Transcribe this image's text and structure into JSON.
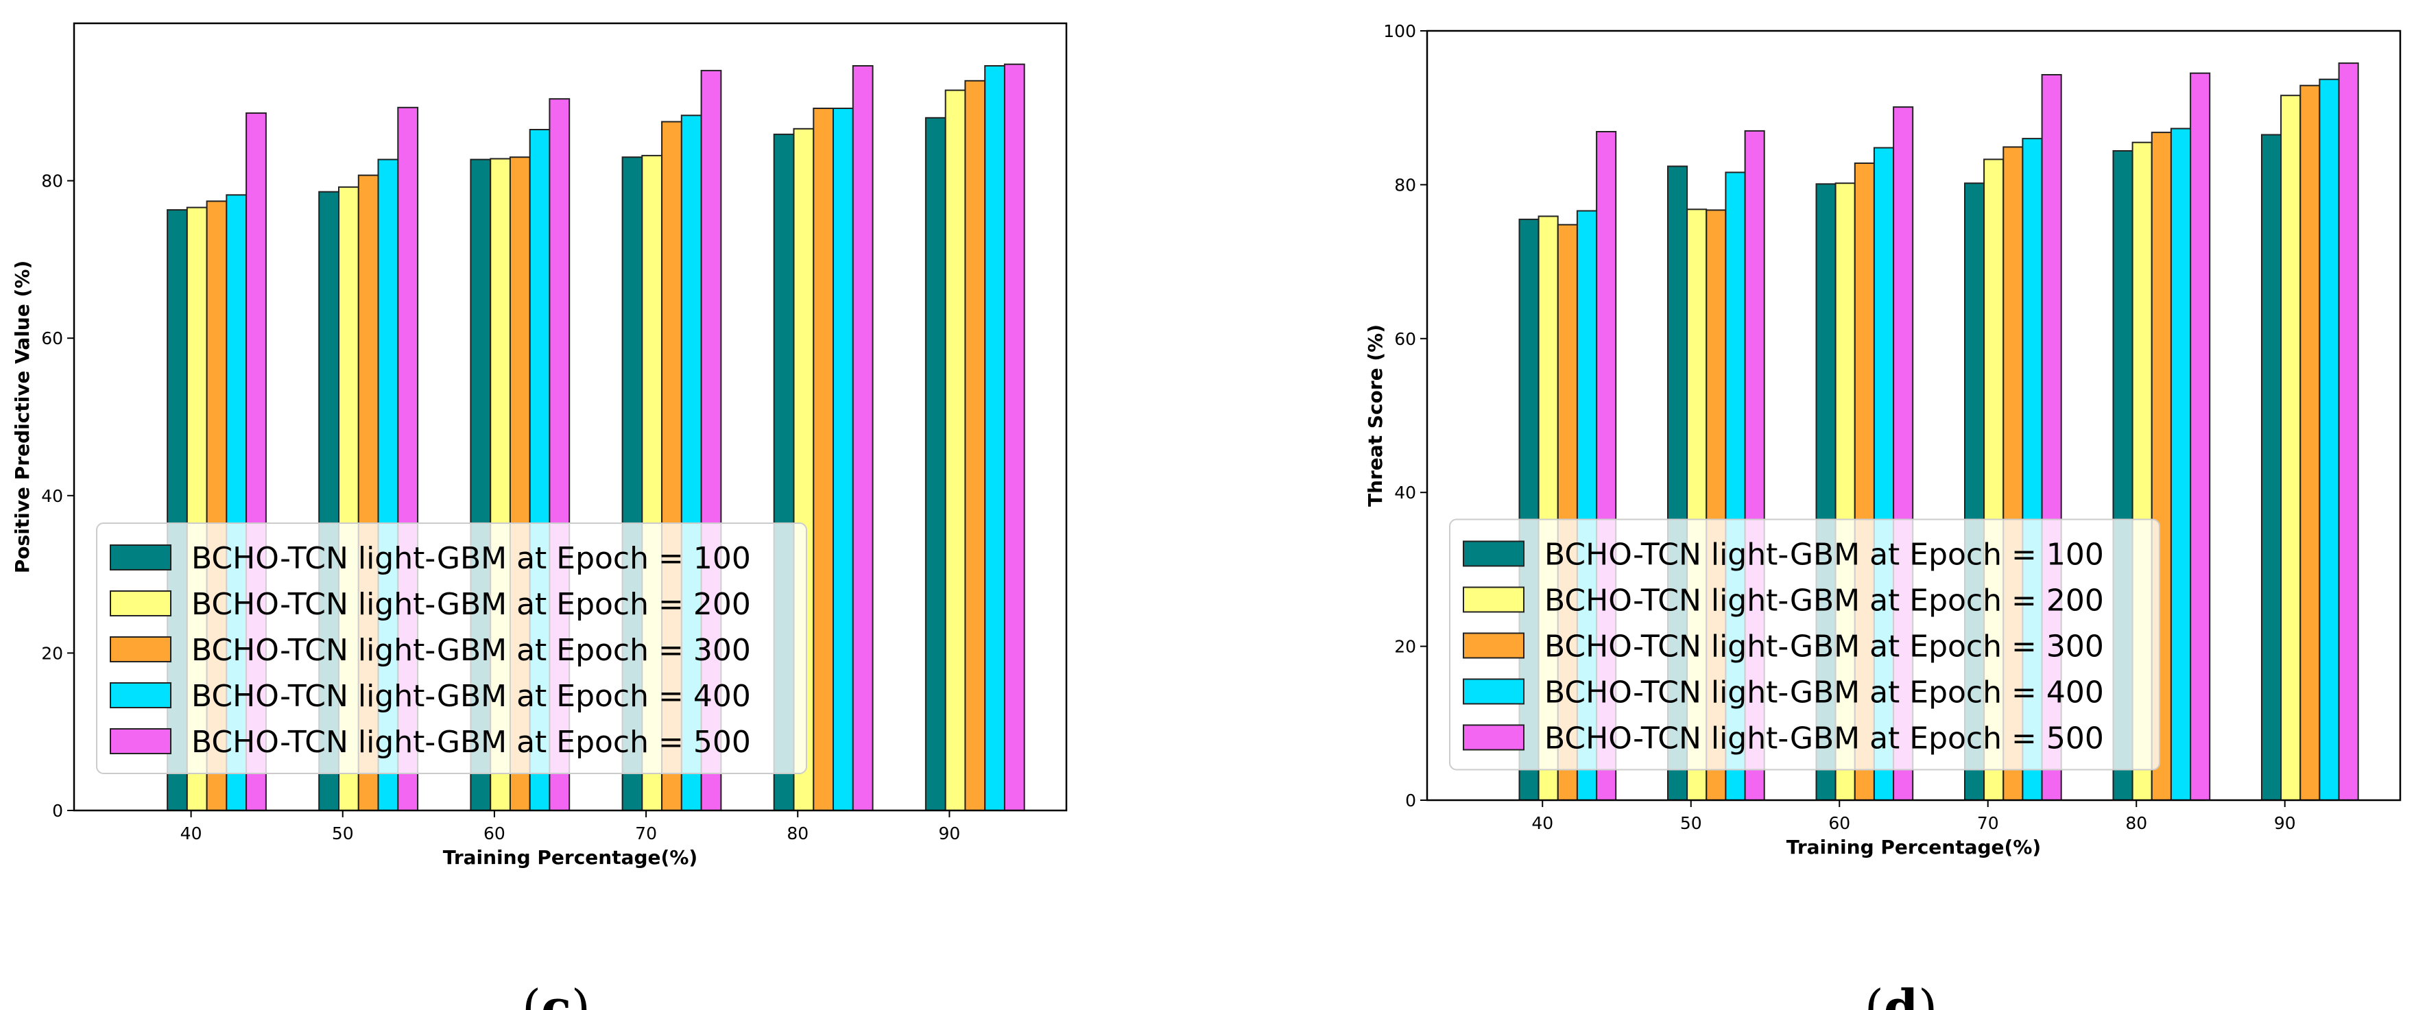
{
  "chart_data": [
    {
      "type": "bar",
      "panel": "c",
      "categories": [
        "40",
        "50",
        "60",
        "70",
        "80",
        "90"
      ],
      "xlabel": "Training Percentage(%)",
      "ylabel": "Positive Predictive Value (%)",
      "ylim": [
        0,
        100
      ],
      "yticks": [
        "0",
        "20",
        "40",
        "60",
        "80"
      ],
      "legend_position": "lower-left",
      "series": [
        {
          "name": "BCHO-TCN light-GBM at Epoch = 100",
          "color": "#008080",
          "values": [
            76.3,
            78.6,
            82.7,
            83.0,
            85.9,
            88.0
          ]
        },
        {
          "name": "BCHO-TCN light-GBM at Epoch = 200",
          "color": "#FFFF80",
          "values": [
            76.6,
            79.2,
            82.8,
            83.2,
            86.6,
            91.5
          ]
        },
        {
          "name": "BCHO-TCN light-GBM at Epoch = 300",
          "color": "#FFA533",
          "values": [
            77.4,
            80.7,
            83.0,
            87.5,
            89.2,
            92.7
          ]
        },
        {
          "name": "BCHO-TCN light-GBM at Epoch = 400",
          "color": "#00E1FF",
          "values": [
            78.2,
            82.7,
            86.5,
            88.3,
            89.2,
            94.6
          ]
        },
        {
          "name": "BCHO-TCN light-GBM at Epoch = 500",
          "color": "#F266F2",
          "values": [
            88.6,
            89.3,
            90.4,
            94.0,
            94.6,
            94.8
          ]
        }
      ]
    },
    {
      "type": "bar",
      "panel": "d",
      "categories": [
        "40",
        "50",
        "60",
        "70",
        "80",
        "90"
      ],
      "xlabel": "Training Percentage(%)",
      "ylabel": "Threat Score (%)",
      "ylim": [
        0,
        100
      ],
      "yticks": [
        "0",
        "20",
        "40",
        "60",
        "80",
        "100"
      ],
      "legend_position": "lower-left",
      "series": [
        {
          "name": "BCHO-TCN light-GBM at Epoch = 100",
          "color": "#008080",
          "values": [
            75.5,
            82.4,
            80.1,
            80.2,
            84.4,
            86.5
          ]
        },
        {
          "name": "BCHO-TCN light-GBM at Epoch = 200",
          "color": "#FFFF80",
          "values": [
            75.9,
            76.8,
            80.2,
            83.3,
            85.5,
            91.6
          ]
        },
        {
          "name": "BCHO-TCN light-GBM at Epoch = 300",
          "color": "#FFA533",
          "values": [
            74.8,
            76.7,
            82.8,
            84.9,
            86.8,
            92.9
          ]
        },
        {
          "name": "BCHO-TCN light-GBM at Epoch = 400",
          "color": "#00E1FF",
          "values": [
            76.6,
            81.6,
            84.8,
            86.0,
            87.3,
            93.7
          ]
        },
        {
          "name": "BCHO-TCN light-GBM at Epoch = 500",
          "color": "#F266F2",
          "values": [
            86.9,
            87.0,
            90.1,
            94.3,
            94.5,
            95.8
          ]
        }
      ]
    }
  ],
  "captions": {
    "c": {
      "open": "(",
      "letter": "c",
      "close": ")"
    },
    "d": {
      "open": "(",
      "letter": "d",
      "close": ")"
    }
  }
}
